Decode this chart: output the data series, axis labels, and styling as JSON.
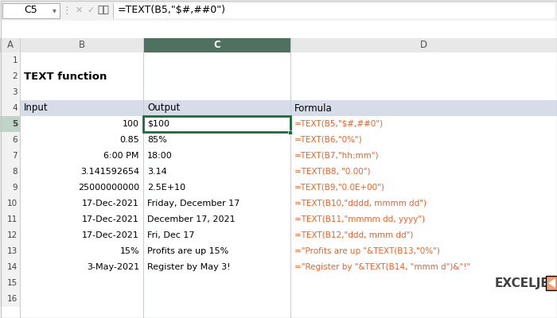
{
  "title": "TEXT function",
  "formula_bar_cell": "C5",
  "formula_bar_formula": "=TEXT(B5,\"$#,##0\")",
  "col_headers": [
    "A",
    "B",
    "C",
    "D"
  ],
  "table_headers": [
    "Input",
    "Output",
    "Formula"
  ],
  "rows": [
    [
      "100",
      "$100",
      "=TEXT(B5,\"$#,##0\")"
    ],
    [
      "0.85",
      "85%",
      "=TEXT(B6,\"0%\")"
    ],
    [
      "6:00 PM",
      "18:00",
      "=TEXT(B7,\"hh:mm\")"
    ],
    [
      "3.141592654",
      "3.14",
      "=TEXT(B8, \"0.00\")"
    ],
    [
      "25000000000",
      "2.5E+10",
      "=TEXT(B9,\"0.0E+00\")"
    ],
    [
      "17-Dec-2021",
      "Friday, December 17",
      "=TEXT(B10,\"dddd, mmmm dd\")"
    ],
    [
      "17-Dec-2021",
      "December 17, 2021",
      "=TEXT(B11,\"mmmm dd, yyyy\")"
    ],
    [
      "17-Dec-2021",
      "Fri, Dec 17",
      "=TEXT(B12,\"ddd, mmm dd\")"
    ],
    [
      "15%",
      "Profits are up 15%",
      "=\"Profits are up \"&TEXT(B13,\"0%\")"
    ],
    [
      "3-May-2021",
      "Register by May 3!",
      "=\"Register by \"&TEXT(B14, \"mmm d\")&\"!\""
    ]
  ],
  "header_bg": "#d6dce8",
  "selected_cell_border": "#1a6b3c",
  "grid_color": "#c8cdd4",
  "toolbar_bg": "#f2f2f2",
  "col_header_bg": "#e8e8e8",
  "row_header_bg": "#f2f2f2",
  "selected_col_header_bg": "#507060",
  "selected_row_header_bg": "#c0d4c8",
  "exceljet_orange": "#e8632a",
  "exceljet_dark": "#404040",
  "fig_bg": "#ffffff",
  "formula_text_color": "#c0504d"
}
